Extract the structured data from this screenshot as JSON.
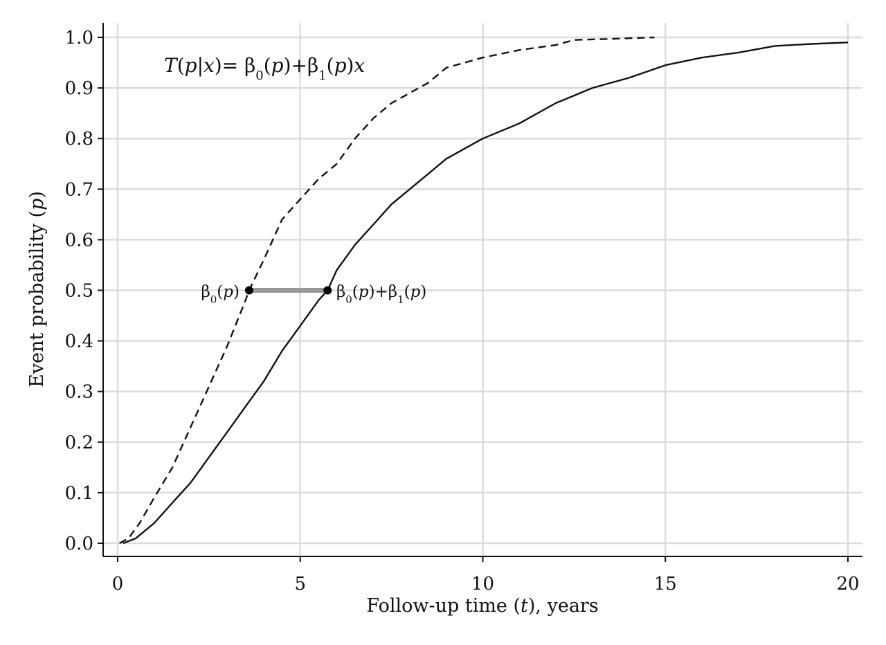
{
  "chart_data": {
    "type": "line",
    "xlabel_parts": [
      "Follow-up time (",
      "t",
      "), years"
    ],
    "ylabel_parts": [
      "Event probability (",
      "p",
      ")"
    ],
    "xlim": [
      -0.4,
      20.8
    ],
    "ylim": [
      -0.03,
      1.03
    ],
    "x_ticks": [
      0,
      5,
      10,
      15,
      20
    ],
    "x_tick_labels": [
      "0",
      "5",
      "10",
      "15",
      "20"
    ],
    "y_ticks": [
      0,
      0.1,
      0.2,
      0.3,
      0.4,
      0.5,
      0.6,
      0.7,
      0.8,
      0.9,
      1.0
    ],
    "y_tick_labels": [
      "0.0",
      "0.1",
      "0.2",
      "0.3",
      "0.4",
      "0.5",
      "0.6",
      "0.7",
      "0.8",
      "0.9",
      "1.0"
    ],
    "grid": true,
    "series": [
      {
        "style": "dashed",
        "points": [
          [
            0.05,
            0.0
          ],
          [
            0.3,
            0.01
          ],
          [
            0.6,
            0.04
          ],
          [
            1.0,
            0.09
          ],
          [
            1.5,
            0.15
          ],
          [
            2.0,
            0.23
          ],
          [
            2.5,
            0.31
          ],
          [
            3.0,
            0.39
          ],
          [
            3.5,
            0.48
          ],
          [
            3.6,
            0.5
          ],
          [
            4.0,
            0.56
          ],
          [
            4.5,
            0.64
          ],
          [
            5.0,
            0.68
          ],
          [
            5.5,
            0.72
          ],
          [
            6.0,
            0.75
          ],
          [
            6.5,
            0.8
          ],
          [
            7.0,
            0.84
          ],
          [
            7.5,
            0.87
          ],
          [
            8.0,
            0.89
          ],
          [
            8.5,
            0.91
          ],
          [
            9.0,
            0.94
          ],
          [
            9.5,
            0.95
          ],
          [
            10.0,
            0.96
          ],
          [
            11.0,
            0.975
          ],
          [
            12.0,
            0.985
          ],
          [
            12.5,
            0.995
          ],
          [
            13.5,
            0.997
          ],
          [
            14.7,
            1.0
          ]
        ]
      },
      {
        "style": "solid",
        "points": [
          [
            0.15,
            0.0
          ],
          [
            0.5,
            0.01
          ],
          [
            1.0,
            0.04
          ],
          [
            1.5,
            0.08
          ],
          [
            2.0,
            0.12
          ],
          [
            2.5,
            0.17
          ],
          [
            3.0,
            0.22
          ],
          [
            3.5,
            0.27
          ],
          [
            4.0,
            0.32
          ],
          [
            4.5,
            0.38
          ],
          [
            5.0,
            0.43
          ],
          [
            5.5,
            0.48
          ],
          [
            5.75,
            0.5
          ],
          [
            6.0,
            0.54
          ],
          [
            6.5,
            0.59
          ],
          [
            7.0,
            0.63
          ],
          [
            7.5,
            0.67
          ],
          [
            8.0,
            0.7
          ],
          [
            8.5,
            0.73
          ],
          [
            9.0,
            0.76
          ],
          [
            9.5,
            0.78
          ],
          [
            10.0,
            0.8
          ],
          [
            11.0,
            0.83
          ],
          [
            12.0,
            0.87
          ],
          [
            13.0,
            0.9
          ],
          [
            14.0,
            0.92
          ],
          [
            15.0,
            0.945
          ],
          [
            16.0,
            0.96
          ],
          [
            17.0,
            0.97
          ],
          [
            18.0,
            0.983
          ],
          [
            19.0,
            0.987
          ],
          [
            20.0,
            0.99
          ]
        ]
      }
    ],
    "segment": {
      "p": 0.5,
      "x_start": 3.6,
      "x_end": 5.75,
      "color": "#999999"
    },
    "equation": {
      "T": "T",
      "p1": "p",
      "x1": "x",
      "b0p": "p",
      "b1p": "p",
      "x2": "x"
    },
    "left_label": {
      "p": "p"
    },
    "right_label": {
      "p1": "p",
      "p2": "p"
    }
  }
}
